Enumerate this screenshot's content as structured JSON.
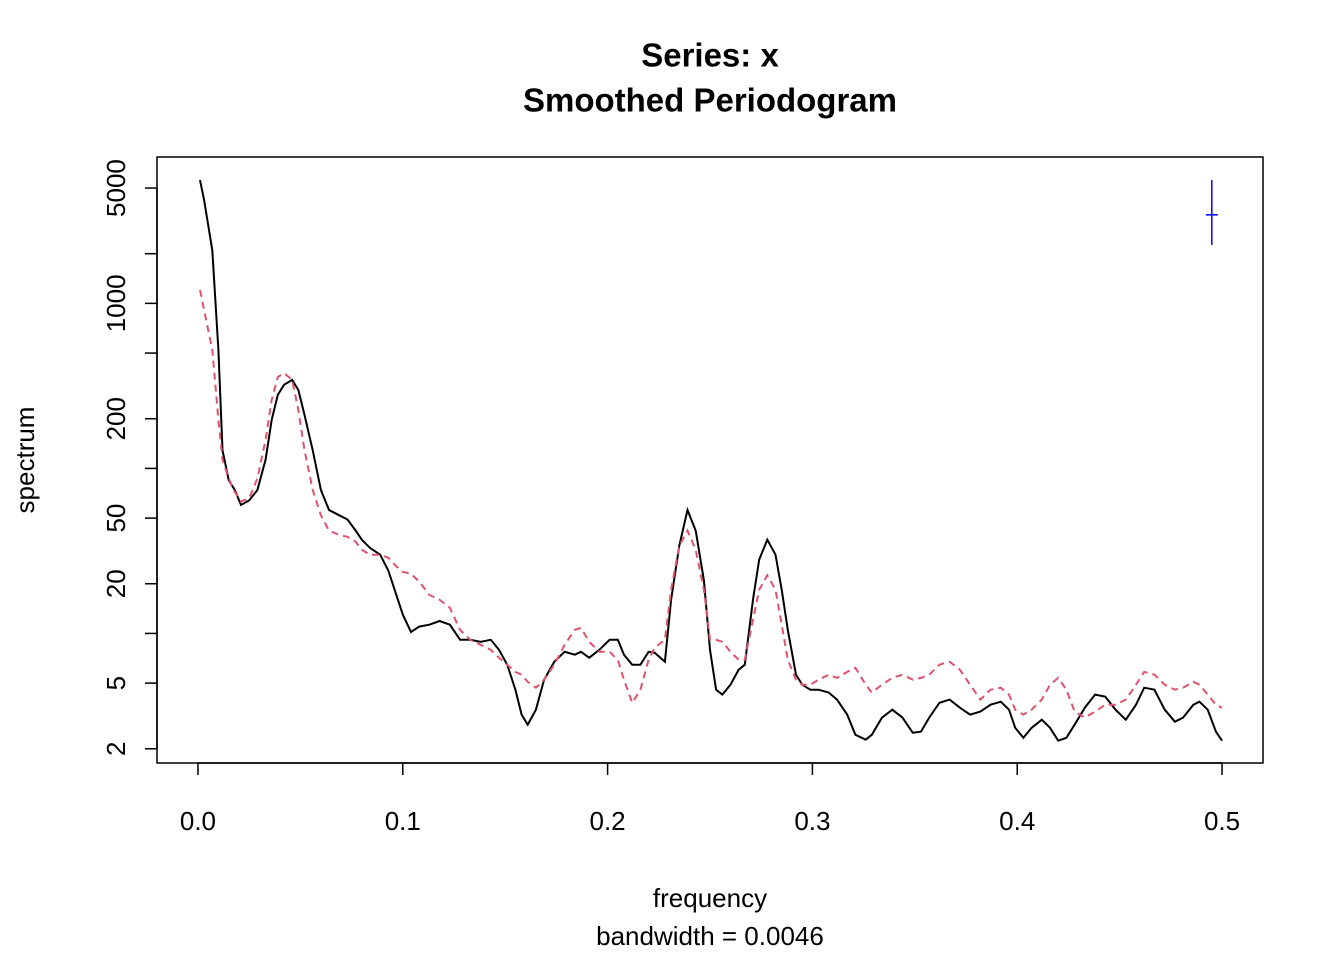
{
  "chart_data": {
    "type": "line",
    "title": "Series: x",
    "subtitle": "Smoothed Periodogram",
    "xlabel": "frequency",
    "note": "bandwidth = 0.0046",
    "ylabel": "spectrum",
    "log_y": true,
    "xlim": [
      -0.02,
      0.52
    ],
    "ylim": [
      1.64,
      7710
    ],
    "xticks": [
      {
        "value": 0,
        "label": "0.0"
      },
      0.1,
      0.2,
      0.3,
      0.4,
      0.5
    ],
    "yticks": [
      2,
      5,
      20,
      50,
      200,
      1000,
      5000
    ],
    "yminor": [
      10,
      100,
      500,
      2000
    ],
    "x": [
      0.001,
      0.003,
      0.007,
      0.01,
      0.012,
      0.015,
      0.018,
      0.021,
      0.025,
      0.029,
      0.033,
      0.036,
      0.039,
      0.042,
      0.046,
      0.049,
      0.052,
      0.056,
      0.06,
      0.064,
      0.069,
      0.073,
      0.077,
      0.08,
      0.084,
      0.089,
      0.093,
      0.096,
      0.1,
      0.104,
      0.108,
      0.113,
      0.118,
      0.123,
      0.128,
      0.133,
      0.138,
      0.143,
      0.147,
      0.151,
      0.155,
      0.158,
      0.161,
      0.165,
      0.169,
      0.174,
      0.179,
      0.184,
      0.187,
      0.191,
      0.196,
      0.201,
      0.205,
      0.208,
      0.212,
      0.216,
      0.22,
      0.223,
      0.228,
      0.231,
      0.235,
      0.239,
      0.243,
      0.247,
      0.25,
      0.253,
      0.256,
      0.26,
      0.264,
      0.267,
      0.271,
      0.274,
      0.278,
      0.282,
      0.285,
      0.288,
      0.292,
      0.295,
      0.299,
      0.303,
      0.308,
      0.312,
      0.317,
      0.321,
      0.326,
      0.329,
      0.334,
      0.339,
      0.344,
      0.349,
      0.353,
      0.357,
      0.362,
      0.367,
      0.372,
      0.377,
      0.382,
      0.387,
      0.392,
      0.396,
      0.399,
      0.403,
      0.407,
      0.412,
      0.416,
      0.42,
      0.424,
      0.428,
      0.433,
      0.438,
      0.443,
      0.448,
      0.453,
      0.458,
      0.462,
      0.467,
      0.472,
      0.477,
      0.481,
      0.486,
      0.489,
      0.493,
      0.497,
      0.5
    ],
    "series": [
      {
        "color": "#000000",
        "dashed": false,
        "values": [
          5590,
          4230,
          2100,
          523,
          129,
          85,
          74,
          60,
          64,
          74,
          113,
          197,
          279,
          321,
          344,
          299,
          211,
          129,
          74,
          56,
          52,
          49,
          42,
          37,
          33,
          30,
          24,
          18.4,
          13.0,
          10.2,
          11.0,
          11.3,
          11.9,
          11.3,
          9.15,
          9.15,
          8.9,
          9.15,
          7.96,
          6.46,
          4.56,
          3.22,
          2.8,
          3.45,
          5.24,
          6.74,
          7.74,
          7.43,
          7.74,
          7.13,
          7.96,
          9.15,
          9.15,
          7.43,
          6.46,
          6.46,
          7.74,
          7.64,
          6.74,
          16.0,
          34,
          56,
          42,
          21,
          7.96,
          4.56,
          4.26,
          4.89,
          6.03,
          6.46,
          16.0,
          28,
          37,
          30,
          18.4,
          10.5,
          5.62,
          4.89,
          4.56,
          4.56,
          4.38,
          3.97,
          3.22,
          2.43,
          2.27,
          2.43,
          3.09,
          3.45,
          3.09,
          2.5,
          2.54,
          3.09,
          3.8,
          3.97,
          3.55,
          3.22,
          3.36,
          3.7,
          3.86,
          3.45,
          2.68,
          2.33,
          2.68,
          3.0,
          2.68,
          2.24,
          2.33,
          2.8,
          3.55,
          4.26,
          4.14,
          3.45,
          3.0,
          3.7,
          4.69,
          4.56,
          3.45,
          2.92,
          3.09,
          3.7,
          3.86,
          3.45,
          2.54,
          2.24
        ]
      },
      {
        "color": "#DF536B",
        "dashed": true,
        "values": [
          1205,
          912,
          523,
          197,
          113,
          87,
          72,
          63,
          66,
          87,
          149,
          260,
          358,
          378,
          344,
          226,
          129,
          74,
          52,
          42,
          39.5,
          38.5,
          35.9,
          32.1,
          30,
          30,
          28.7,
          26.1,
          23.6,
          23.0,
          20.6,
          17.1,
          16.0,
          14.3,
          10.5,
          9.15,
          8.53,
          7.96,
          7.13,
          6.46,
          5.85,
          5.62,
          5.09,
          4.69,
          5.24,
          6.46,
          8.53,
          10.5,
          10.8,
          8.9,
          7.74,
          7.74,
          6.92,
          5.24,
          3.8,
          4.56,
          6.92,
          8.2,
          9.15,
          18.4,
          34,
          42,
          32.1,
          18.4,
          9.15,
          9.15,
          8.9,
          7.74,
          6.92,
          6.92,
          12.1,
          18.4,
          22.5,
          18.4,
          11.3,
          6.92,
          5.24,
          4.89,
          4.89,
          5.24,
          5.62,
          5.38,
          5.85,
          6.19,
          4.89,
          4.38,
          4.89,
          5.38,
          5.62,
          5.24,
          5.38,
          5.62,
          6.46,
          6.74,
          6.03,
          4.89,
          3.97,
          4.56,
          4.69,
          4.26,
          3.45,
          3.22,
          3.45,
          3.97,
          4.89,
          5.38,
          4.56,
          3.36,
          3.09,
          3.36,
          3.7,
          3.7,
          3.97,
          4.89,
          5.85,
          5.62,
          4.89,
          4.56,
          4.69,
          5.09,
          4.89,
          4.26,
          3.7,
          3.55
        ]
      }
    ],
    "ci": {
      "x": 0.495,
      "center": 3440,
      "lower": 2260,
      "upper": 5590,
      "color": "#0000FF"
    }
  }
}
